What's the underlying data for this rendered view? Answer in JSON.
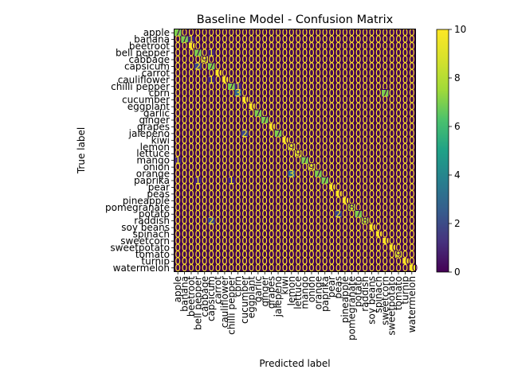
{
  "chart_data": {
    "type": "heatmap",
    "title": "Baseline Model - Confusion Matrix",
    "xlabel": "Predicted label",
    "ylabel": "True label",
    "labels": [
      "apple",
      "banana",
      "beetroot",
      "bell pepper",
      "cabbage",
      "capsicum",
      "carrot",
      "cauliflower",
      "chilli pepper",
      "corn",
      "cucumber",
      "eggplant",
      "garlic",
      "ginger",
      "grapes",
      "jalepeno",
      "kiwi",
      "lemon",
      "lettuce",
      "mango",
      "onion",
      "orange",
      "paprika",
      "pear",
      "peas",
      "pineapple",
      "pomegranate",
      "potato",
      "raddish",
      "soy beans",
      "spinach",
      "sweetcorn",
      "sweetpotato",
      "tomato",
      "turnip",
      "watermelon"
    ],
    "diagonal": [
      7,
      7,
      10,
      7,
      9,
      7,
      10,
      10,
      7,
      3,
      10,
      10,
      7,
      7,
      10,
      7,
      10,
      9,
      9,
      7,
      9,
      7,
      7,
      10,
      10,
      10,
      8,
      7,
      8,
      10,
      10,
      10,
      10,
      9,
      10,
      10
    ],
    "off_diagonal": [
      {
        "row": 1,
        "col": 2,
        "value": 1
      },
      {
        "row": 3,
        "col": 5,
        "value": 1
      },
      {
        "row": 5,
        "col": 3,
        "value": 2
      },
      {
        "row": 7,
        "col": 5,
        "value": 1
      },
      {
        "row": 8,
        "col": 9,
        "value": 1
      },
      {
        "row": 9,
        "col": 31,
        "value": 7
      },
      {
        "row": 15,
        "col": 10,
        "value": 2
      },
      {
        "row": 19,
        "col": 0,
        "value": 1
      },
      {
        "row": 21,
        "col": 17,
        "value": 3
      },
      {
        "row": 22,
        "col": 3,
        "value": 1
      },
      {
        "row": 22,
        "col": 8,
        "value": 1
      },
      {
        "row": 27,
        "col": 24,
        "value": 2
      },
      {
        "row": 28,
        "col": 5,
        "value": 2
      }
    ],
    "colorbar": {
      "min": 0,
      "max": 10,
      "ticks": [
        "0",
        "2",
        "4",
        "6",
        "8",
        "10"
      ],
      "colormap": "viridis"
    },
    "cell_label_colors": {
      "dark": "#fde725",
      "light": "#440154"
    },
    "grid": false
  }
}
